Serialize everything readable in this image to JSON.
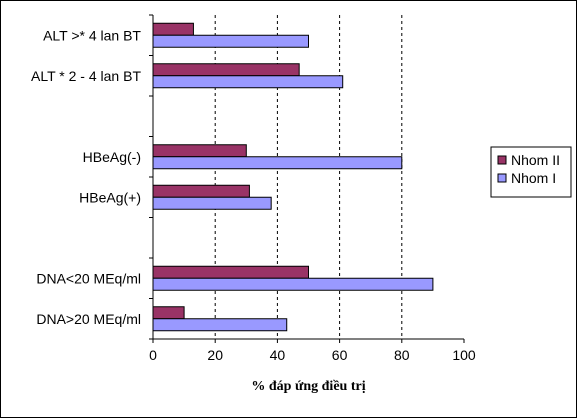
{
  "chart_data": {
    "type": "bar",
    "orientation": "horizontal",
    "categories": [
      "ALT >* 4 lan BT",
      "ALT * 2 - 4 lan BT",
      "",
      "HBeAg(-)",
      "HBeAg(+)",
      "",
      "DNA<20 MEq/ml",
      "DNA>20 MEq/ml"
    ],
    "series": [
      {
        "name": "Nhom II",
        "color": "#993366",
        "values": [
          13,
          47,
          null,
          30,
          31,
          null,
          50,
          10
        ]
      },
      {
        "name": "Nhom I",
        "color": "#9999ff",
        "values": [
          50,
          61,
          null,
          80,
          38,
          null,
          90,
          43
        ]
      }
    ],
    "xlabel": "% đáp ứng điều trị",
    "ylabel": "",
    "title": "",
    "xlim": [
      0,
      100
    ],
    "xticks": [
      0,
      20,
      40,
      60,
      80,
      100
    ],
    "grid": "vertical dashed",
    "legend_position": "right",
    "legend_order": [
      "Nhom II",
      "Nhom I"
    ]
  }
}
